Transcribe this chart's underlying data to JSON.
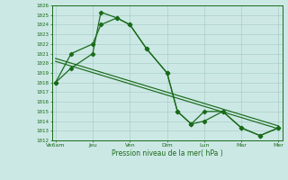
{
  "xlabel": "Pression niveau de la mer( hPa )",
  "x_ticks_labels": [
    "Ve6am",
    "Jeu",
    "Ven",
    "Dim",
    "Lun",
    "Mar",
    "Mer"
  ],
  "x_ticks_pos": [
    0,
    1,
    2,
    3,
    4,
    5,
    6
  ],
  "ylim": [
    1012,
    1026
  ],
  "yticks": [
    1012,
    1013,
    1014,
    1015,
    1016,
    1017,
    1018,
    1019,
    1020,
    1021,
    1022,
    1023,
    1024,
    1025,
    1026
  ],
  "line_color": "#1a6b1a",
  "bg_color": "#cce8e5",
  "grid_color": "#a0c8c4",
  "series1_x": [
    0,
    0.42,
    1.0,
    1.22,
    1.65,
    2.0,
    2.45,
    3.0,
    3.28,
    3.65,
    4.0,
    4.5,
    5.0,
    5.5,
    6.0
  ],
  "series1_y": [
    1018,
    1019.5,
    1021.0,
    1025.3,
    1024.7,
    1024.0,
    1021.5,
    1019.0,
    1015.0,
    1013.7,
    1014.0,
    1015.0,
    1013.3,
    1012.5,
    1013.3
  ],
  "series2_x": [
    0,
    0.42,
    1.0,
    1.22,
    1.65,
    2.0,
    2.45,
    3.0,
    3.28,
    3.65,
    4.0,
    4.5,
    5.0,
    5.5,
    6.0
  ],
  "series2_y": [
    1018,
    1021.0,
    1022.0,
    1024.0,
    1024.7,
    1024.0,
    1021.5,
    1019.0,
    1015.0,
    1013.7,
    1015.0,
    1015.0,
    1013.3,
    1012.5,
    1013.3
  ],
  "trend1_x": [
    0,
    6.0
  ],
  "trend1_y": [
    1020.5,
    1013.5
  ],
  "trend2_x": [
    0,
    6.0
  ],
  "trend2_y": [
    1020.2,
    1013.2
  ]
}
